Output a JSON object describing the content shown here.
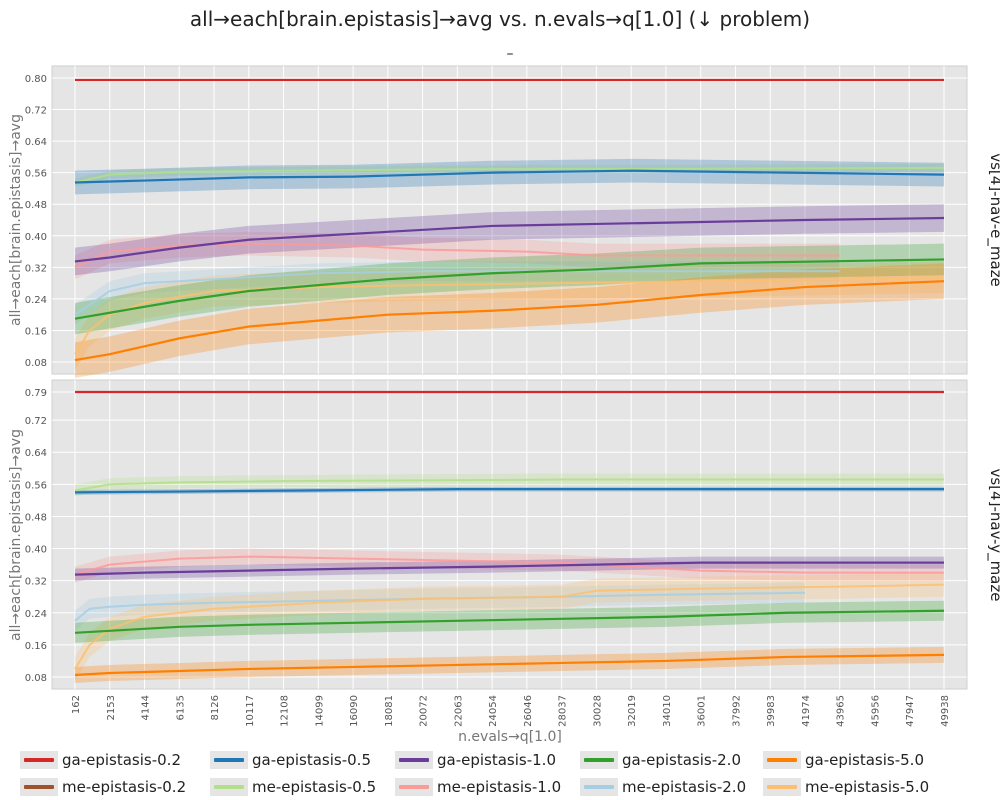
{
  "title": "all→each[brain.epistasis]→avg vs. n.evals→q[1.0] (↓ problem)",
  "subtitle": "–",
  "colors": {
    "ga-epistasis-0.2": "#d62728",
    "ga-epistasis-0.5": "#1f77b4",
    "ga-epistasis-1.0": "#6a3d9a",
    "ga-epistasis-2.0": "#33a02c",
    "ga-epistasis-5.0": "#ff7f00",
    "me-epistasis-0.2": "#a0522d",
    "me-epistasis-0.5": "#b2df8a",
    "me-epistasis-1.0": "#fb9a99",
    "me-epistasis-2.0": "#a6cee3",
    "me-epistasis-5.0": "#fdbf6f"
  },
  "legend": [
    {
      "name": "ga-epistasis-0.2",
      "color": "#d62728"
    },
    {
      "name": "ga-epistasis-0.5",
      "color": "#1f77b4"
    },
    {
      "name": "ga-epistasis-1.0",
      "color": "#6a3d9a"
    },
    {
      "name": "ga-epistasis-2.0",
      "color": "#33a02c"
    },
    {
      "name": "ga-epistasis-5.0",
      "color": "#ff7f00"
    },
    {
      "name": "me-epistasis-0.2",
      "color": "#a0522d"
    },
    {
      "name": "me-epistasis-0.5",
      "color": "#b2df8a"
    },
    {
      "name": "me-epistasis-1.0",
      "color": "#fb9a99"
    },
    {
      "name": "me-epistasis-2.0",
      "color": "#a6cee3"
    },
    {
      "name": "me-epistasis-5.0",
      "color": "#fdbf6f"
    }
  ],
  "chart_data": [
    {
      "type": "line",
      "facet_label": "vs[4]-nav-e_maze",
      "xlabel": "n.evals→q[1.0]",
      "ylabel": "all→each[brain.epistasis]→avg",
      "xlim": [
        162,
        49938
      ],
      "ylim": [
        0.07,
        0.81
      ],
      "xticks": [
        162,
        2153,
        4144,
        6135,
        8126,
        10117,
        12108,
        14099,
        16090,
        18081,
        20072,
        22063,
        24054,
        26046,
        28037,
        30028,
        32019,
        34010,
        36001,
        37992,
        39983,
        41974,
        43965,
        45956,
        47947,
        49938
      ],
      "yticks": [
        "0.08",
        "0.16",
        "0.24",
        "0.32",
        "0.40",
        "0.48",
        "0.56",
        "0.64",
        "0.72",
        "0.80"
      ],
      "grid": true,
      "series": [
        {
          "name": "me-epistasis-0.5",
          "x": [
            162,
            2153,
            6135,
            12108,
            20072,
            28037,
            36001,
            49938
          ],
          "y": [
            0.535,
            0.555,
            0.562,
            0.565,
            0.568,
            0.57,
            0.57,
            0.572
          ],
          "band": 0.01
        },
        {
          "name": "me-epistasis-1.0",
          "x": [
            162,
            2153,
            6135,
            10117,
            16090,
            20072,
            26046,
            30028,
            36001,
            41974,
            43965
          ],
          "y": [
            0.32,
            0.36,
            0.375,
            0.38,
            0.375,
            0.365,
            0.36,
            0.35,
            0.35,
            0.35,
            0.35
          ],
          "band": 0.03
        },
        {
          "name": "me-epistasis-2.0",
          "x": [
            162,
            2153,
            4144,
            8126,
            14099,
            20072,
            28037,
            34010,
            41974,
            43965
          ],
          "y": [
            0.2,
            0.26,
            0.28,
            0.29,
            0.305,
            0.31,
            0.31,
            0.31,
            0.31,
            0.31
          ],
          "band": 0.025
        },
        {
          "name": "me-epistasis-5.0",
          "x": [
            162,
            1000,
            2153,
            4144,
            8126,
            14099,
            20072,
            28037,
            36001,
            43965,
            49938
          ],
          "y": [
            0.1,
            0.16,
            0.2,
            0.23,
            0.26,
            0.27,
            0.275,
            0.28,
            0.285,
            0.29,
            0.295
          ],
          "band": 0.04
        },
        {
          "name": "ga-epistasis-0.2",
          "x": [
            162,
            49938
          ],
          "y": [
            0.795,
            0.795
          ],
          "band": 0.002
        },
        {
          "name": "ga-epistasis-0.5",
          "x": [
            162,
            4144,
            10117,
            16090,
            24054,
            32019,
            40983,
            49938
          ],
          "y": [
            0.535,
            0.54,
            0.548,
            0.55,
            0.56,
            0.565,
            0.56,
            0.555
          ],
          "band": 0.03
        },
        {
          "name": "ga-epistasis-1.0",
          "x": [
            162,
            2153,
            6135,
            10117,
            14099,
            18081,
            24054,
            30028,
            36001,
            41974,
            49938
          ],
          "y": [
            0.335,
            0.345,
            0.37,
            0.39,
            0.4,
            0.41,
            0.425,
            0.43,
            0.435,
            0.44,
            0.445
          ],
          "band": 0.035
        },
        {
          "name": "ga-epistasis-2.0",
          "x": [
            162,
            2153,
            6135,
            10117,
            14099,
            18081,
            24054,
            30028,
            36001,
            42974,
            49938
          ],
          "y": [
            0.19,
            0.205,
            0.235,
            0.26,
            0.275,
            0.29,
            0.305,
            0.315,
            0.33,
            0.335,
            0.34
          ],
          "band": 0.04
        },
        {
          "name": "ga-epistasis-5.0",
          "x": [
            162,
            2153,
            4144,
            6135,
            10117,
            14099,
            18081,
            24054,
            30028,
            36001,
            41974,
            49938
          ],
          "y": [
            0.085,
            0.1,
            0.12,
            0.14,
            0.17,
            0.185,
            0.2,
            0.21,
            0.225,
            0.25,
            0.27,
            0.285
          ],
          "band": 0.045
        }
      ]
    },
    {
      "type": "line",
      "facet_label": "vs[4]-nav-y_maze",
      "xlabel": "n.evals→q[1.0]",
      "ylabel": "all→each[brain.epistasis]→avg",
      "xlim": [
        162,
        49938
      ],
      "ylim": [
        0.07,
        0.8
      ],
      "xticks": [
        162,
        2153,
        4144,
        6135,
        8126,
        10117,
        12108,
        14099,
        16090,
        18081,
        20072,
        22063,
        24054,
        26046,
        28037,
        30028,
        32019,
        34010,
        36001,
        37992,
        39983,
        41974,
        43965,
        45956,
        47947,
        49938
      ],
      "yticks": [
        "0.08",
        "0.16",
        "0.24",
        "0.32",
        "0.40",
        "0.48",
        "0.56",
        "0.64",
        "0.72",
        "0.79"
      ],
      "grid": true,
      "series": [
        {
          "name": "me-epistasis-0.5",
          "x": [
            162,
            2153,
            6135,
            12108,
            20072,
            28037,
            36001,
            49938
          ],
          "y": [
            0.545,
            0.56,
            0.565,
            0.568,
            0.57,
            0.572,
            0.572,
            0.572
          ],
          "band": 0.015
        },
        {
          "name": "me-epistasis-1.0",
          "x": [
            162,
            2153,
            6135,
            10117,
            16090,
            22063,
            28037,
            32019,
            36001,
            41974,
            49938
          ],
          "y": [
            0.335,
            0.36,
            0.375,
            0.38,
            0.375,
            0.37,
            0.365,
            0.355,
            0.345,
            0.34,
            0.34
          ],
          "band": 0.02
        },
        {
          "name": "me-epistasis-2.0",
          "x": [
            162,
            1000,
            2153,
            4144,
            8126,
            14099,
            20072,
            28037,
            34010,
            41974
          ],
          "y": [
            0.22,
            0.25,
            0.255,
            0.26,
            0.265,
            0.27,
            0.275,
            0.28,
            0.285,
            0.29
          ],
          "band": 0.025
        },
        {
          "name": "me-epistasis-5.0",
          "x": [
            162,
            1000,
            2153,
            4144,
            8126,
            14099,
            20072,
            28037,
            30028,
            36001,
            43965,
            49938
          ],
          "y": [
            0.1,
            0.16,
            0.2,
            0.23,
            0.25,
            0.265,
            0.275,
            0.28,
            0.295,
            0.3,
            0.305,
            0.31
          ],
          "band": 0.03
        },
        {
          "name": "ga-epistasis-0.2",
          "x": [
            162,
            49938
          ],
          "y": [
            0.79,
            0.79
          ],
          "band": 0.002
        },
        {
          "name": "ga-epistasis-0.5",
          "x": [
            162,
            6135,
            14099,
            22063,
            30028,
            40983,
            49938
          ],
          "y": [
            0.54,
            0.542,
            0.545,
            0.548,
            0.548,
            0.548,
            0.548
          ],
          "band": 0.006
        },
        {
          "name": "ga-epistasis-1.0",
          "x": [
            162,
            4144,
            10117,
            16090,
            24054,
            30028,
            36001,
            43965,
            49938
          ],
          "y": [
            0.335,
            0.34,
            0.345,
            0.35,
            0.355,
            0.36,
            0.365,
            0.365,
            0.365
          ],
          "band": 0.015
        },
        {
          "name": "ga-epistasis-2.0",
          "x": [
            162,
            2153,
            6135,
            10117,
            16090,
            22063,
            28037,
            34010,
            40983,
            49938
          ],
          "y": [
            0.19,
            0.195,
            0.205,
            0.21,
            0.215,
            0.22,
            0.225,
            0.23,
            0.24,
            0.245
          ],
          "band": 0.025
        },
        {
          "name": "ga-epistasis-5.0",
          "x": [
            162,
            2153,
            6135,
            10117,
            16090,
            22063,
            28037,
            34010,
            40983,
            49938
          ],
          "y": [
            0.085,
            0.09,
            0.095,
            0.1,
            0.105,
            0.11,
            0.115,
            0.12,
            0.13,
            0.135
          ],
          "band": 0.02
        }
      ]
    }
  ]
}
